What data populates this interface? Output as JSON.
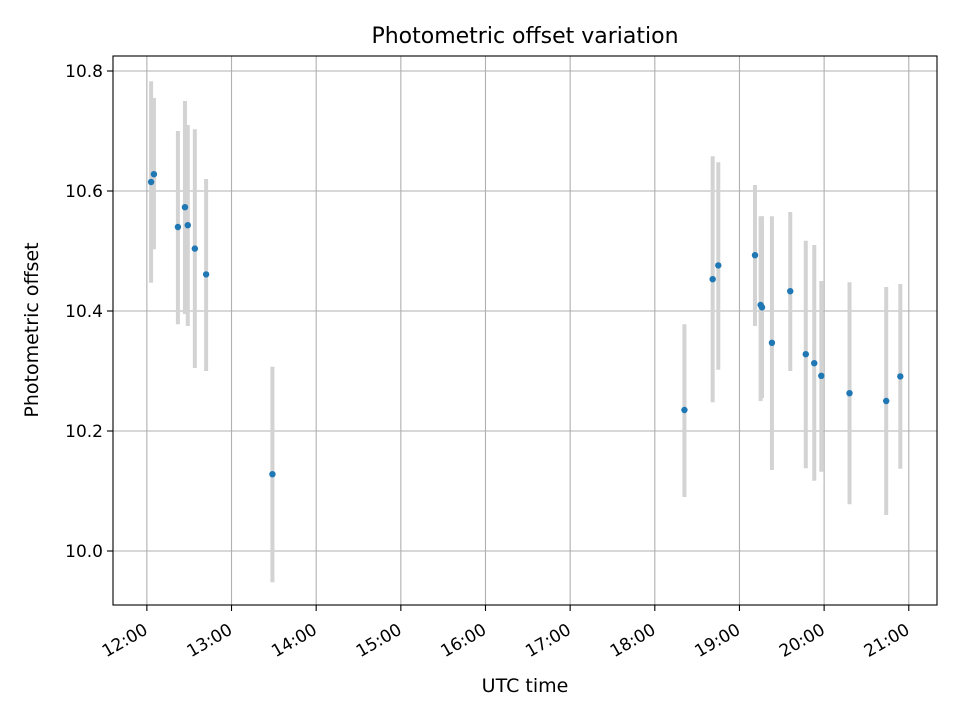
{
  "chart_data": {
    "type": "scatter",
    "title": "Photometric offset variation",
    "xlabel": "UTC time",
    "ylabel": "Photometric offset",
    "x_axis_type": "time",
    "xlim": [
      "11:36",
      "21:20"
    ],
    "ylim": [
      9.91,
      10.825
    ],
    "x_ticks": [
      "12:00",
      "13:00",
      "14:00",
      "15:00",
      "16:00",
      "17:00",
      "18:00",
      "19:00",
      "20:00",
      "21:00"
    ],
    "y_ticks": [
      10.0,
      10.2,
      10.4,
      10.6,
      10.8
    ],
    "y_tick_labels": [
      "10.0",
      "10.2",
      "10.4",
      "10.6",
      "10.8"
    ],
    "grid": true,
    "marker_color": "#1f77b4",
    "errorbar_color": "#d3d3d3",
    "points": [
      {
        "time": "12:03",
        "y": 10.615,
        "err_low": 10.447,
        "err_high": 10.783
      },
      {
        "time": "12:05",
        "y": 10.628,
        "err_low": 10.503,
        "err_high": 10.755
      },
      {
        "time": "12:22",
        "y": 10.54,
        "err_low": 10.378,
        "err_high": 10.7
      },
      {
        "time": "12:27",
        "y": 10.573,
        "err_low": 10.395,
        "err_high": 10.75
      },
      {
        "time": "12:29",
        "y": 10.543,
        "err_low": 10.375,
        "err_high": 10.71
      },
      {
        "time": "12:34",
        "y": 10.504,
        "err_low": 10.305,
        "err_high": 10.703
      },
      {
        "time": "12:42",
        "y": 10.461,
        "err_low": 10.3,
        "err_high": 10.62
      },
      {
        "time": "13:29",
        "y": 10.128,
        "err_low": 9.948,
        "err_high": 10.307
      },
      {
        "time": "18:21",
        "y": 10.235,
        "err_low": 10.09,
        "err_high": 10.378
      },
      {
        "time": "18:41",
        "y": 10.453,
        "err_low": 10.248,
        "err_high": 10.658
      },
      {
        "time": "18:45",
        "y": 10.476,
        "err_low": 10.302,
        "err_high": 10.648
      },
      {
        "time": "19:11",
        "y": 10.493,
        "err_low": 10.375,
        "err_high": 10.61
      },
      {
        "time": "19:15",
        "y": 10.41,
        "err_low": 10.25,
        "err_high": 10.558
      },
      {
        "time": "19:16",
        "y": 10.406,
        "err_low": 10.255,
        "err_high": 10.558
      },
      {
        "time": "19:23",
        "y": 10.347,
        "err_low": 10.135,
        "err_high": 10.558
      },
      {
        "time": "19:36",
        "y": 10.433,
        "err_low": 10.3,
        "err_high": 10.565
      },
      {
        "time": "19:47",
        "y": 10.328,
        "err_low": 10.138,
        "err_high": 10.517
      },
      {
        "time": "19:53",
        "y": 10.313,
        "err_low": 10.117,
        "err_high": 10.51
      },
      {
        "time": "19:58",
        "y": 10.292,
        "err_low": 10.132,
        "err_high": 10.45
      },
      {
        "time": "20:18",
        "y": 10.263,
        "err_low": 10.078,
        "err_high": 10.448
      },
      {
        "time": "20:44",
        "y": 10.25,
        "err_low": 10.06,
        "err_high": 10.44
      },
      {
        "time": "20:54",
        "y": 10.291,
        "err_low": 10.137,
        "err_high": 10.445
      }
    ]
  }
}
